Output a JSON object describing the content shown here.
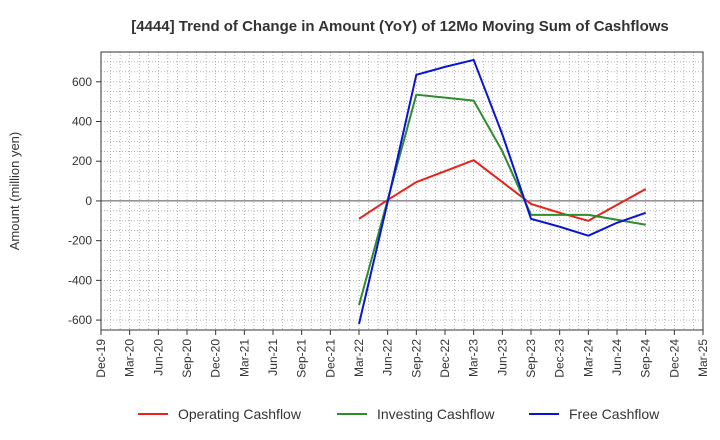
{
  "chart_data": {
    "type": "line",
    "title": "[4444]  Trend of Change in Amount (YoY) of 12Mo Moving Sum of Cashflows",
    "xlabel": "",
    "ylabel": "Amount (million yen)",
    "ylim": [
      -650,
      750
    ],
    "yticks": [
      -600,
      -400,
      -200,
      0,
      200,
      400,
      600
    ],
    "grid": true,
    "legend": "bottom",
    "categories": [
      "Dec-19",
      "Mar-20",
      "Jun-20",
      "Sep-20",
      "Dec-20",
      "Mar-21",
      "Jun-21",
      "Sep-21",
      "Dec-21",
      "Mar-22",
      "Jun-22",
      "Sep-22",
      "Dec-22",
      "Mar-23",
      "Jun-23",
      "Sep-23",
      "Dec-23",
      "Mar-24",
      "Jun-24",
      "Sep-24",
      "Dec-24",
      "Mar-25"
    ],
    "series": [
      {
        "name": "Operating Cashflow",
        "color": "#e8221b",
        "values": [
          null,
          null,
          null,
          null,
          null,
          null,
          null,
          null,
          null,
          -90,
          5,
          95,
          150,
          205,
          95,
          -15,
          -60,
          -100,
          -20,
          60,
          null,
          null
        ]
      },
      {
        "name": "Investing Cashflow",
        "color": "#2e8b2e",
        "values": [
          null,
          null,
          null,
          null,
          null,
          null,
          null,
          null,
          null,
          -525,
          5,
          535,
          520,
          505,
          250,
          -70,
          -70,
          -70,
          -95,
          -120,
          null,
          null
        ]
      },
      {
        "name": "Free Cashflow",
        "color": "#0a14d6",
        "values": [
          null,
          null,
          null,
          null,
          null,
          null,
          null,
          null,
          null,
          -620,
          -5,
          635,
          675,
          710,
          335,
          -90,
          -130,
          -175,
          -110,
          -60,
          null,
          null
        ]
      }
    ]
  }
}
